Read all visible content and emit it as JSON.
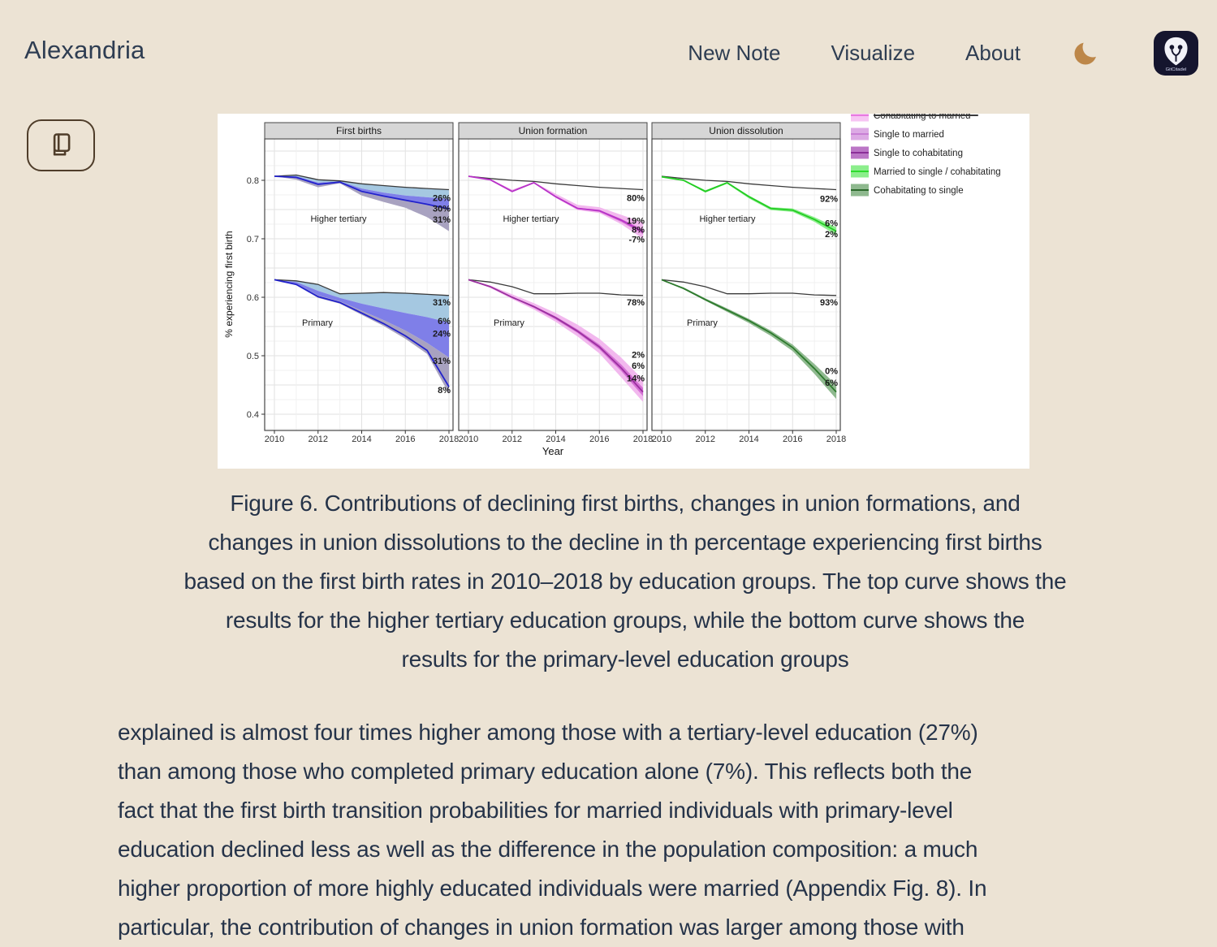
{
  "header": {
    "brand": "Alexandria",
    "nav": [
      {
        "label": "New Note"
      },
      {
        "label": "Visualize"
      },
      {
        "label": "About"
      }
    ],
    "theme_icon": "moon-icon",
    "logo_icon": "gitcitadel-shield-icon",
    "logo_text": "GitCitadel"
  },
  "reader_button": {
    "icon": "book-icon"
  },
  "figure": {
    "caption": "Figure 6. Contributions of declining first births, changes in union formations, and\nchanges in union dissolutions to the decline in th percentage experiencing first births\nbased on the first birth rates in 2010–2018 by education groups. The top curve shows the\nresults for the higher tertiary education groups, while the bottom curve shows the\nresults for the primary-level education groups"
  },
  "article": {
    "text": "explained is almost four times higher among those with a tertiary-level education (27%)\nthan among those who completed primary education alone (7%). This reflects both the\nfact that the first birth transition probabilities for married individuals with primary-level\neducation declined less as well as the difference in the population composition: a much\nhigher proportion of more highly educated individuals were married (Appendix Fig. 8). In",
    "text_more": "particular, the contribution of changes in union formation was larger among those with"
  },
  "chart_data": {
    "type": "area",
    "x": [
      2010,
      2011,
      2012,
      2013,
      2014,
      2015,
      2016,
      2017,
      2018
    ],
    "x_ticks": [
      2010,
      2012,
      2014,
      2016,
      2018
    ],
    "y_ticks": [
      "0.4",
      "0.5",
      "0.6",
      "0.7",
      "0.8"
    ],
    "ylabel": "% experiencing first birth",
    "xlabel": "Year",
    "ylim": [
      0.372,
      0.871
    ],
    "grid": true,
    "legend_position": "top-right (top entry cut off)",
    "legend": [
      {
        "label": "Cohabitating to married",
        "fill": "#f7c4f3",
        "line": "#e87ae0",
        "cut_off": true
      },
      {
        "label": "Single to married",
        "fill": "#dcaae4",
        "line": "#c87fd4"
      },
      {
        "label": "Single to cohabitating",
        "fill": "#bb76c6",
        "line": "#8b2f98"
      },
      {
        "label": "Married to single / cohabitating",
        "fill": "#8cee8c",
        "line": "#2edc2e"
      },
      {
        "label": "Cohabitating to single",
        "fill": "#8fb98f",
        "line": "#2d6a2d"
      }
    ],
    "panels": [
      {
        "title": "First births",
        "groups": [
          {
            "name": "Higher tertiary",
            "label_dx": 91,
            "label_v": 0.735,
            "counterfactual": [
              0.807,
              0.809,
              0.801,
              0.799,
              0.794,
              0.791,
              0.788,
              0.786,
              0.784
            ],
            "bands": [
              {
                "color": "#a5c8e1",
                "top": [
                  0.807,
                  0.809,
                  0.801,
                  0.799,
                  0.794,
                  0.791,
                  0.788,
                  0.786,
                  0.784
                ],
                "bottom": [
                  0.807,
                  0.807,
                  0.796,
                  0.798,
                  0.786,
                  0.779,
                  0.774,
                  0.771,
                  0.768
                ]
              },
              {
                "color": "#7f7fe8",
                "top": [
                  0.807,
                  0.807,
                  0.796,
                  0.798,
                  0.786,
                  0.779,
                  0.774,
                  0.771,
                  0.768
                ],
                "bottom": [
                  0.807,
                  0.805,
                  0.793,
                  0.797,
                  0.781,
                  0.773,
                  0.766,
                  0.759,
                  0.752
                ]
              },
              {
                "color": "#a8a2c0",
                "top": [
                  0.807,
                  0.805,
                  0.793,
                  0.797,
                  0.781,
                  0.773,
                  0.766,
                  0.759,
                  0.752
                ],
                "bottom": [
                  0.807,
                  0.801,
                  0.788,
                  0.795,
                  0.774,
                  0.763,
                  0.753,
                  0.737,
                  0.713
                ]
              }
            ],
            "line": {
              "color": "#2222cc",
              "values": [
                0.807,
                0.805,
                0.793,
                0.797,
                0.781,
                0.773,
                0.766,
                0.759,
                0.751
              ]
            },
            "annotations": [
              {
                "text": "26%",
                "v": 0.77
              },
              {
                "text": "30%",
                "v": 0.752
              },
              {
                "text": "31%",
                "v": 0.733
              }
            ]
          },
          {
            "name": "Primary",
            "label_dx": 65,
            "label_v": 0.557,
            "counterfactual": [
              0.63,
              0.628,
              0.622,
              0.606,
              0.607,
              0.608,
              0.607,
              0.605,
              0.603
            ],
            "bands": [
              {
                "color": "#a5c8e1",
                "top": [
                  0.63,
                  0.628,
                  0.622,
                  0.606,
                  0.607,
                  0.608,
                  0.607,
                  0.605,
                  0.603
                ],
                "bottom": [
                  0.63,
                  0.626,
                  0.611,
                  0.599,
                  0.589,
                  0.581,
                  0.573,
                  0.566,
                  0.557
                ]
              },
              {
                "color": "#7f7fe8",
                "top": [
                  0.63,
                  0.626,
                  0.611,
                  0.599,
                  0.589,
                  0.581,
                  0.573,
                  0.566,
                  0.557
                ],
                "bottom": [
                  0.63,
                  0.623,
                  0.603,
                  0.593,
                  0.577,
                  0.561,
                  0.543,
                  0.522,
                  0.497
                ]
              },
              {
                "color": "#a8a2c0",
                "top": [
                  0.63,
                  0.623,
                  0.603,
                  0.593,
                  0.577,
                  0.561,
                  0.543,
                  0.522,
                  0.497
                ],
                "bottom": [
                  0.63,
                  0.621,
                  0.599,
                  0.589,
                  0.57,
                  0.551,
                  0.529,
                  0.503,
                  0.435
                ]
              }
            ],
            "line": {
              "color": "#2222cc",
              "values": [
                0.63,
                0.622,
                0.601,
                0.591,
                0.573,
                0.555,
                0.534,
                0.509,
                0.447
              ]
            },
            "annotations": [
              {
                "text": "31%",
                "v": 0.592
              },
              {
                "text": "6%",
                "v": 0.56
              },
              {
                "text": "24%",
                "v": 0.538
              },
              {
                "text": "31%",
                "v": 0.492
              },
              {
                "text": "8%",
                "v": 0.442
              }
            ]
          }
        ]
      },
      {
        "title": "Union formation",
        "groups": [
          {
            "name": "Higher tertiary",
            "label_dx": 89,
            "label_v": 0.735,
            "counterfactual": [
              0.807,
              0.803,
              0.8,
              0.798,
              0.794,
              0.791,
              0.788,
              0.786,
              0.784
            ],
            "bands": [
              {
                "color": "#f2b8ee",
                "top": [
                  0.807,
                  0.802,
                  0.784,
                  0.797,
                  0.777,
                  0.758,
                  0.754,
                  0.741,
                  0.728
                ],
                "bottom": [
                  0.807,
                  0.8,
                  0.78,
                  0.795,
                  0.77,
                  0.749,
                  0.744,
                  0.725,
                  0.7
                ]
              },
              {
                "color": "#d470d4",
                "top": [
                  0.807,
                  0.801,
                  0.782,
                  0.796,
                  0.773,
                  0.753,
                  0.749,
                  0.734,
                  0.716
                ],
                "bottom": [
                  0.807,
                  0.8,
                  0.781,
                  0.795,
                  0.771,
                  0.751,
                  0.746,
                  0.729,
                  0.708
                ]
              }
            ],
            "line": {
              "color": "#b832c8",
              "values": [
                0.807,
                0.801,
                0.781,
                0.796,
                0.772,
                0.752,
                0.748,
                0.732,
                0.712
              ]
            },
            "annotations": [
              {
                "text": "80%",
                "v": 0.77
              },
              {
                "text": "19%",
                "v": 0.731
              },
              {
                "text": "8%",
                "v": 0.716
              },
              {
                "text": "-7%",
                "v": 0.699
              }
            ]
          },
          {
            "name": "Primary",
            "label_dx": 62,
            "label_v": 0.557,
            "counterfactual": [
              0.63,
              0.626,
              0.618,
              0.606,
              0.606,
              0.607,
              0.607,
              0.604,
              0.603
            ],
            "bands": [
              {
                "color": "#f2b8ee",
                "top": [
                  0.63,
                  0.62,
                  0.605,
                  0.59,
                  0.573,
                  0.553,
                  0.529,
                  0.497,
                  0.459
                ],
                "bottom": [
                  0.63,
                  0.616,
                  0.597,
                  0.579,
                  0.558,
                  0.533,
                  0.504,
                  0.463,
                  0.421
                ]
              },
              {
                "color": "#d470d4",
                "top": [
                  0.63,
                  0.618,
                  0.601,
                  0.585,
                  0.567,
                  0.545,
                  0.519,
                  0.485,
                  0.445
                ],
                "bottom": [
                  0.63,
                  0.617,
                  0.599,
                  0.582,
                  0.562,
                  0.539,
                  0.511,
                  0.474,
                  0.431
                ]
              }
            ],
            "line": {
              "color": "#9b30a0",
              "values": [
                0.63,
                0.618,
                0.6,
                0.584,
                0.565,
                0.542,
                0.515,
                0.479,
                0.438
              ]
            },
            "annotations": [
              {
                "text": "78%",
                "v": 0.592
              },
              {
                "text": "2%",
                "v": 0.502
              },
              {
                "text": "6%",
                "v": 0.483
              },
              {
                "text": "14%",
                "v": 0.462
              }
            ]
          }
        ]
      },
      {
        "title": "Union dissolution",
        "groups": [
          {
            "name": "Higher tertiary",
            "label_dx": 93,
            "label_v": 0.735,
            "counterfactual": [
              0.807,
              0.803,
              0.8,
              0.798,
              0.794,
              0.791,
              0.788,
              0.786,
              0.784
            ],
            "bands": [
              {
                "color": "#8cee8c",
                "top": [
                  0.806,
                  0.801,
                  0.783,
                  0.797,
                  0.774,
                  0.754,
                  0.752,
                  0.737,
                  0.72
                ],
                "bottom": [
                  0.806,
                  0.799,
                  0.779,
                  0.794,
                  0.769,
                  0.749,
                  0.746,
                  0.729,
                  0.706
                ]
              }
            ],
            "line": {
              "color": "#22cc22",
              "values": [
                0.806,
                0.8,
                0.781,
                0.796,
                0.772,
                0.752,
                0.749,
                0.733,
                0.713
              ]
            },
            "annotations": [
              {
                "text": "92%",
                "v": 0.769
              },
              {
                "text": "6%",
                "v": 0.727
              },
              {
                "text": "2%",
                "v": 0.708
              }
            ]
          },
          {
            "name": "Primary",
            "label_dx": 62,
            "label_v": 0.557,
            "counterfactual": [
              0.63,
              0.626,
              0.618,
              0.606,
              0.606,
              0.607,
              0.607,
              0.604,
              0.603
            ],
            "bands": [
              {
                "color": "#8fb98f",
                "top": [
                  0.63,
                  0.617,
                  0.598,
                  0.581,
                  0.563,
                  0.543,
                  0.519,
                  0.486,
                  0.45
                ],
                "bottom": [
                  0.63,
                  0.614,
                  0.594,
                  0.575,
                  0.556,
                  0.534,
                  0.508,
                  0.469,
                  0.426
                ]
              }
            ],
            "line": {
              "color": "#2d7a2d",
              "values": [
                0.63,
                0.615,
                0.596,
                0.578,
                0.56,
                0.539,
                0.514,
                0.478,
                0.438
              ]
            },
            "annotations": [
              {
                "text": "93%",
                "v": 0.592
              },
              {
                "text": "0%",
                "v": 0.474
              },
              {
                "text": "6%",
                "v": 0.454
              }
            ]
          }
        ]
      }
    ]
  }
}
